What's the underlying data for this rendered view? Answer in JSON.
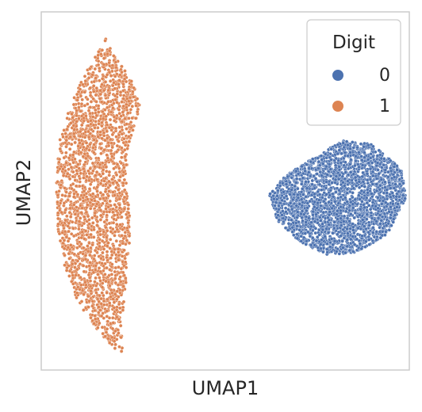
{
  "chart_data": {
    "type": "scatter",
    "xlabel": "UMAP1",
    "ylabel": "UMAP2",
    "xticks": [],
    "yticks": [],
    "xlim": [
      0,
      10
    ],
    "ylim": [
      0,
      10
    ],
    "grid": false,
    "legend": {
      "title": "Digit",
      "placement": "top-right"
    },
    "series": [
      {
        "name": "0",
        "color": "#4c72b0",
        "cluster": "roughly circular blob, right side",
        "outline": [
          [
            6.2,
            4.9
          ],
          [
            6.6,
            5.4
          ],
          [
            7.5,
            6.0
          ],
          [
            8.2,
            6.4
          ],
          [
            9.0,
            6.3
          ],
          [
            9.8,
            5.6
          ],
          [
            9.9,
            4.8
          ],
          [
            9.4,
            3.8
          ],
          [
            8.6,
            3.3
          ],
          [
            7.8,
            3.2
          ],
          [
            7.0,
            3.6
          ],
          [
            6.4,
            4.2
          ]
        ]
      },
      {
        "name": "1",
        "color": "#dd8452",
        "cluster": "elongated vertical band, left side",
        "outline": [
          [
            1.8,
            9.4
          ],
          [
            2.0,
            8.8
          ],
          [
            2.5,
            8.0
          ],
          [
            2.7,
            7.3
          ],
          [
            2.4,
            6.4
          ],
          [
            2.3,
            5.4
          ],
          [
            2.4,
            4.3
          ],
          [
            2.4,
            3.3
          ],
          [
            2.3,
            2.4
          ],
          [
            2.2,
            1.4
          ],
          [
            2.2,
            0.4
          ],
          [
            1.6,
            1.0
          ],
          [
            1.0,
            1.9
          ],
          [
            0.6,
            3.0
          ],
          [
            0.45,
            4.0
          ],
          [
            0.4,
            5.2
          ],
          [
            0.5,
            6.4
          ],
          [
            0.8,
            7.4
          ],
          [
            1.2,
            8.3
          ],
          [
            1.6,
            9.0
          ]
        ]
      }
    ]
  }
}
